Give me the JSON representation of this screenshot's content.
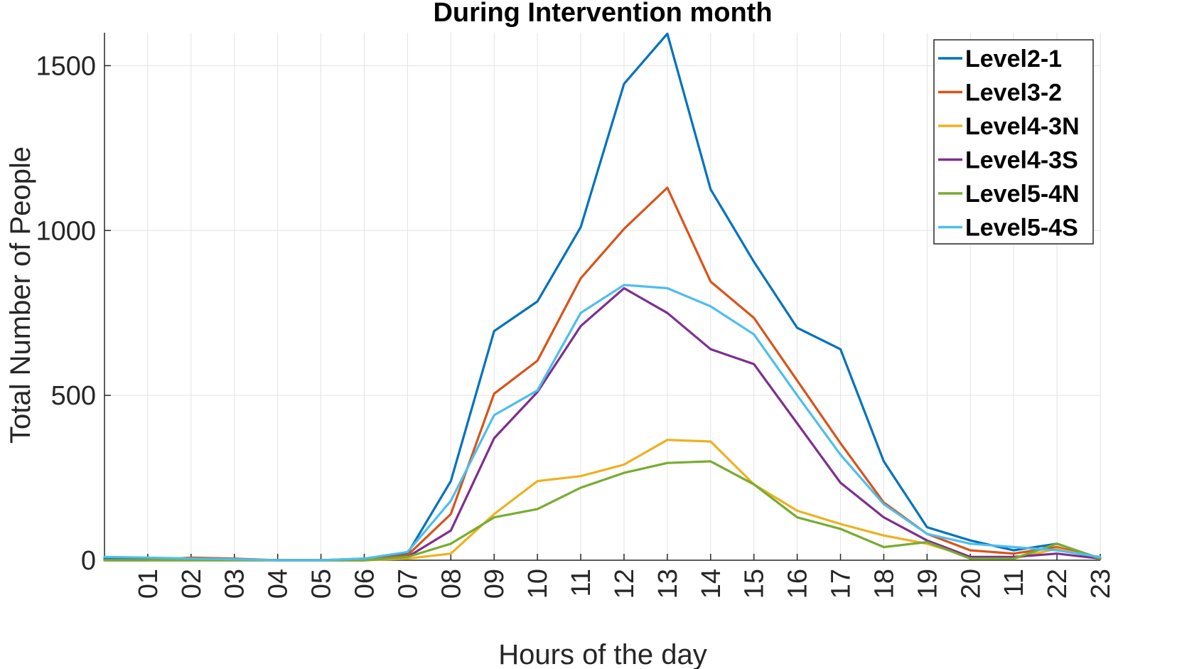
{
  "chart_data": {
    "type": "line",
    "title": "During Intervention month",
    "xlabel": "Hours of the day",
    "ylabel": "Total Number of People",
    "xlim": [
      0,
      23
    ],
    "ylim": [
      0,
      1600
    ],
    "yticks": [
      0,
      500,
      1000,
      1500
    ],
    "x": [
      0,
      1,
      2,
      3,
      4,
      5,
      6,
      7,
      8,
      9,
      10,
      11,
      12,
      13,
      14,
      15,
      16,
      17,
      18,
      19,
      20,
      21,
      22,
      23
    ],
    "xtick_values": [
      1,
      2,
      3,
      4,
      5,
      6,
      7,
      8,
      9,
      10,
      11,
      12,
      13,
      14,
      15,
      16,
      17,
      18,
      19,
      20,
      21,
      22,
      23
    ],
    "xtick_labels": [
      "01",
      "02",
      "03",
      "04",
      "05",
      "06",
      "07",
      "08",
      "09",
      "10",
      "11",
      "12",
      "13",
      "14",
      "15",
      "16",
      "17",
      "18",
      "19",
      "20",
      "11",
      "22",
      "23"
    ],
    "grid": true,
    "legend_position": "top-right",
    "series": [
      {
        "name": "Level2-1",
        "color": "#0072BD",
        "values": [
          5,
          5,
          5,
          3,
          0,
          0,
          5,
          20,
          240,
          695,
          785,
          1010,
          1445,
          1597,
          1125,
          905,
          705,
          640,
          300,
          100,
          60,
          30,
          50,
          5
        ]
      },
      {
        "name": "Level3-2",
        "color": "#D95319",
        "values": [
          0,
          0,
          8,
          5,
          0,
          0,
          0,
          15,
          140,
          505,
          605,
          855,
          1005,
          1130,
          845,
          735,
          545,
          355,
          175,
          80,
          30,
          20,
          40,
          5
        ]
      },
      {
        "name": "Level4-3N",
        "color": "#EDB120",
        "values": [
          0,
          0,
          0,
          0,
          0,
          0,
          0,
          5,
          20,
          140,
          240,
          255,
          290,
          365,
          360,
          230,
          150,
          110,
          75,
          50,
          10,
          5,
          35,
          5
        ]
      },
      {
        "name": "Level4-3S",
        "color": "#7E2F8E",
        "values": [
          0,
          0,
          0,
          0,
          0,
          0,
          0,
          10,
          90,
          370,
          510,
          710,
          825,
          750,
          640,
          595,
          415,
          235,
          130,
          60,
          10,
          10,
          20,
          5
        ]
      },
      {
        "name": "Level5-4N",
        "color": "#77AC30",
        "values": [
          0,
          0,
          0,
          0,
          0,
          0,
          0,
          10,
          50,
          130,
          155,
          220,
          265,
          295,
          300,
          230,
          130,
          95,
          40,
          55,
          5,
          5,
          50,
          5
        ]
      },
      {
        "name": "Level5-4S",
        "color": "#4DBEEE",
        "values": [
          10,
          8,
          5,
          3,
          0,
          0,
          5,
          25,
          180,
          440,
          515,
          750,
          835,
          825,
          770,
          685,
          500,
          320,
          170,
          80,
          50,
          40,
          30,
          10
        ]
      }
    ]
  }
}
